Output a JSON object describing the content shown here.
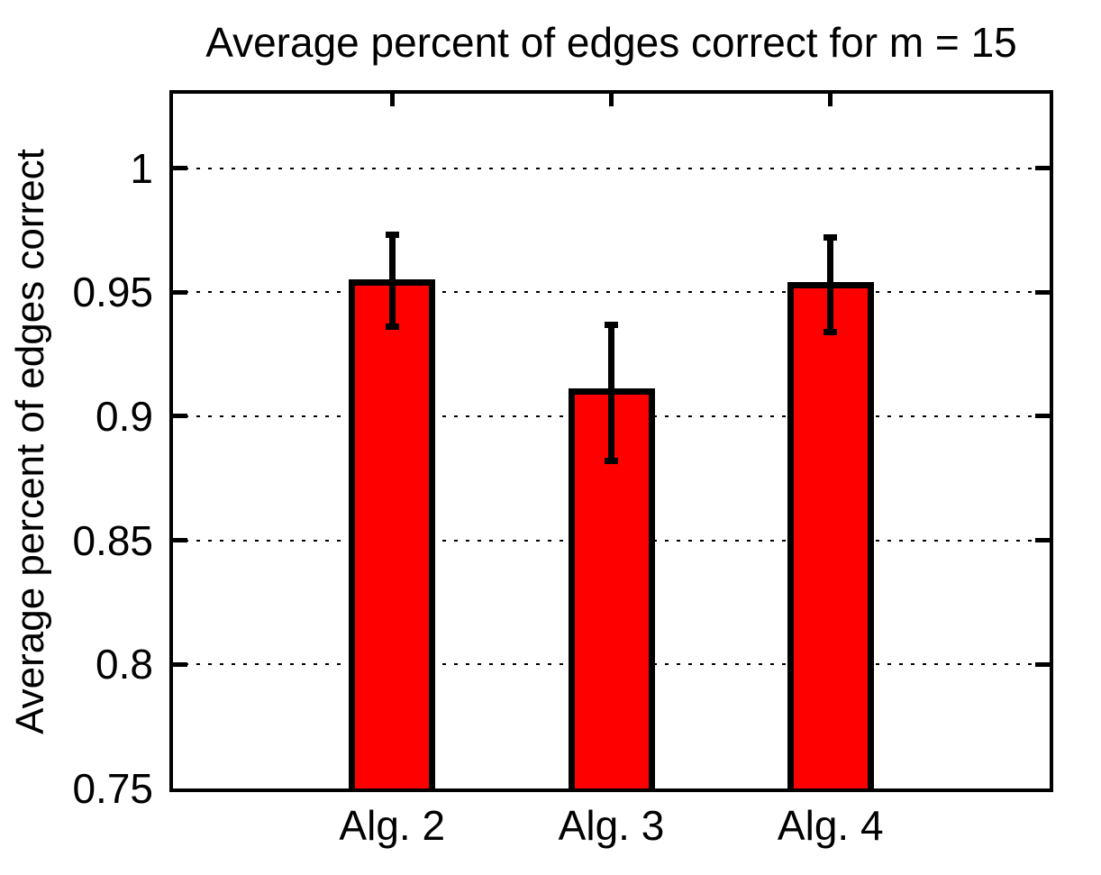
{
  "figure": {
    "background": "#ffffff",
    "text_color": "#000000"
  },
  "chart_data": {
    "type": "bar",
    "title": "Average percent of edges correct for m = 15",
    "xlabel": "",
    "ylabel": "Average percent of edges correct",
    "categories": [
      "Alg. 2",
      "Alg. 3",
      "Alg. 4"
    ],
    "values": [
      0.954,
      0.91,
      0.953
    ],
    "error_low": [
      0.936,
      0.882,
      0.934
    ],
    "error_high": [
      0.973,
      0.937,
      0.972
    ],
    "ylim": [
      0.75,
      1.03
    ],
    "xlim": [
      0,
      4
    ],
    "yticks": [
      0.75,
      0.8,
      0.85,
      0.9,
      0.95,
      1.0
    ],
    "ytick_labels": [
      "0.75",
      "0.8",
      "0.85",
      "0.9",
      "0.95",
      "1"
    ],
    "grid": true,
    "grid_style": "dotted",
    "legend": "none",
    "bar_color": "#ff0000",
    "bar_edge_color": "#000000",
    "errorbar_color": "#000000"
  }
}
